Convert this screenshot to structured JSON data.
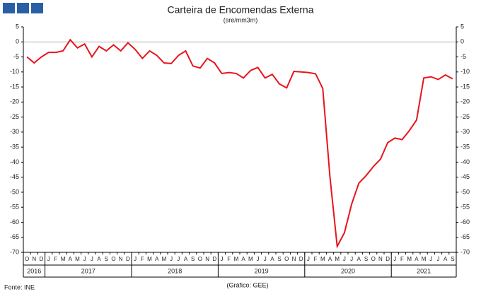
{
  "chart_data": {
    "type": "line",
    "title": "Carteira de Encomendas Externa",
    "subtitle": "(sre/mm3m)",
    "categories": [
      "O",
      "N",
      "D",
      "J",
      "F",
      "M",
      "A",
      "M",
      "J",
      "J",
      "A",
      "S",
      "O",
      "N",
      "D",
      "J",
      "F",
      "M",
      "A",
      "M",
      "J",
      "J",
      "A",
      "S",
      "O",
      "N",
      "D",
      "J",
      "F",
      "M",
      "A",
      "M",
      "J",
      "J",
      "A",
      "S",
      "O",
      "N",
      "D",
      "J",
      "F",
      "M",
      "A",
      "M",
      "J",
      "J",
      "A",
      "S",
      "O",
      "N",
      "D",
      "J",
      "F",
      "M",
      "A",
      "M",
      "J",
      "J",
      "A",
      "S"
    ],
    "years": [
      "2016",
      "2017",
      "2018",
      "2019",
      "2020",
      "2021"
    ],
    "series": [
      {
        "name": "Carteira de Encomendas Externa",
        "color": "#e8141c",
        "values": [
          -5,
          -7,
          -5,
          -3.5,
          -3.5,
          -3,
          0.7,
          -2,
          -0.7,
          -5,
          -1.5,
          -3,
          -1,
          -3,
          -0.3,
          -2.5,
          -5.5,
          -3,
          -4.5,
          -7,
          -7.2,
          -4.5,
          -3,
          -8,
          -8.7,
          -5.5,
          -7,
          -10.5,
          -10.2,
          -10.5,
          -12,
          -9.5,
          -8.5,
          -12,
          -10.8,
          -14,
          -15.3,
          -9.8,
          -10,
          -10.2,
          -10.6,
          -15.5,
          -45,
          -68,
          -63.5,
          -54,
          -47,
          -44.5,
          -41.5,
          -39,
          -33.5,
          -32,
          -32.5,
          -29.5,
          -26,
          -12,
          -11.6,
          -12.5,
          -11,
          -12.3
        ]
      }
    ],
    "ylim": [
      -70,
      5
    ],
    "yticks": [
      -70,
      -65,
      -60,
      -55,
      -50,
      -45,
      -40,
      -35,
      -30,
      -25,
      -20,
      -15,
      -10,
      -5,
      0,
      5
    ],
    "source": "Fonte: INE",
    "credit": "(Gráfico: GEE)"
  }
}
